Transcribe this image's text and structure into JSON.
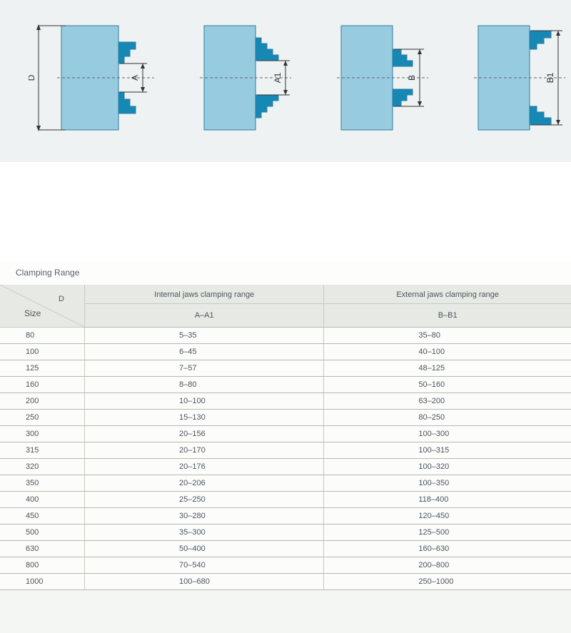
{
  "colors": {
    "chuck_body": "#97cce0",
    "jaw": "#1688b4",
    "outline": "#2e7aa0",
    "page_bg": "#f4f6f4",
    "strip_bg": "#eef2f2",
    "header_bg": "#e7eae4",
    "rule": "#b8b8b0",
    "text": "#4a5560"
  },
  "diagrams": {
    "items": [
      {
        "overall_label": "D",
        "gap_label": "A",
        "jaws": "internal_steps_in",
        "body_w": 80,
        "body_h": 146
      },
      {
        "overall_label": "",
        "gap_label": "A1",
        "jaws": "internal_steps_out",
        "body_w": 72,
        "body_h": 146
      },
      {
        "overall_label": "",
        "gap_label": "B",
        "jaws": "external_steps_in",
        "body_w": 72,
        "body_h": 146
      },
      {
        "overall_label": "",
        "gap_label": "B1",
        "jaws": "external_steps_out",
        "body_w": 72,
        "body_h": 146
      }
    ],
    "center_dash": "4 3"
  },
  "table": {
    "title": "Clamping Range",
    "size_header": {
      "top_right": "D",
      "bottom_left": "Size"
    },
    "groups": [
      {
        "title": "Internal jaws clamping range",
        "sub": "A–A1"
      },
      {
        "title": "External jaws clamping range",
        "sub": "B–B1"
      }
    ],
    "rows": [
      {
        "size": "80",
        "a": "5–35",
        "b": "35–80"
      },
      {
        "size": "100",
        "a": "6–45",
        "b": "40–100"
      },
      {
        "size": "125",
        "a": "7–57",
        "b": "48–125"
      },
      {
        "size": "160",
        "a": "8–80",
        "b": "50–160"
      },
      {
        "size": "200",
        "a": "10–100",
        "b": "63–200"
      },
      {
        "size": "250",
        "a": "15–130",
        "b": "80–250"
      },
      {
        "size": "300",
        "a": "20–156",
        "b": "100–300"
      },
      {
        "size": "315",
        "a": "20–170",
        "b": "100–315"
      },
      {
        "size": "320",
        "a": "20–176",
        "b": "100–320"
      },
      {
        "size": "350",
        "a": "20–206",
        "b": "100–350"
      },
      {
        "size": "400",
        "a": "25–250",
        "b": "118–400"
      },
      {
        "size": "450",
        "a": "30–280",
        "b": "120–450"
      },
      {
        "size": "500",
        "a": "35–300",
        "b": "125–500"
      },
      {
        "size": "630",
        "a": "50–400",
        "b": "160–630"
      },
      {
        "size": "800",
        "a": "70–540",
        "b": "200–800"
      },
      {
        "size": "1000",
        "a": "100–680",
        "b": "250–1000"
      }
    ]
  }
}
